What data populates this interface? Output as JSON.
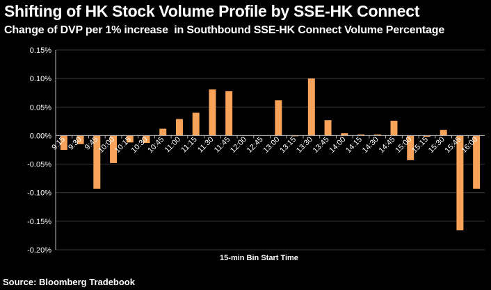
{
  "chart_data": {
    "type": "bar",
    "title": "Shifting of HK Stock Volume Profile by SSE-HK Connect",
    "subtitle": "Change of DVP per 1% increase  in Southbound SSE-HK Connect Volume Percentage",
    "xlabel": "15-min Bin Start Time",
    "ylabel": "",
    "ylim": [
      -0.2,
      0.15
    ],
    "yticks": [
      "0.15%",
      "0.10%",
      "0.05%",
      "0.00%",
      "-0.05%",
      "-0.10%",
      "-0.15%",
      "-0.20%"
    ],
    "ytick_values": [
      0.15,
      0.1,
      0.05,
      0.0,
      -0.05,
      -0.1,
      -0.15,
      -0.2
    ],
    "categories": [
      "9:15",
      "9:30",
      "9:45",
      "10:00",
      "10:15",
      "10:30",
      "10:45",
      "11:00",
      "11:15",
      "11:30",
      "11:45",
      "12:00",
      "12:45",
      "13:00",
      "13:15",
      "13:30",
      "13:45",
      "14:00",
      "14:15",
      "14:30",
      "14:45",
      "15:00",
      "15:15",
      "15:30",
      "15:45",
      "16:00"
    ],
    "values": [
      -0.025,
      -0.015,
      -0.093,
      -0.048,
      -0.012,
      -0.013,
      0.012,
      0.029,
      0.04,
      0.081,
      0.078,
      0,
      0,
      0.062,
      -0.001,
      0.1,
      0.027,
      0.004,
      0.002,
      0.002,
      0.026,
      -0.043,
      -0.002,
      0.01,
      -0.166,
      -0.093
    ],
    "grid": true,
    "legend": "none",
    "bar_color": "#F9A35A",
    "grid_color": "#3a3a3a",
    "axis_color": "#bfbfbf"
  },
  "source": "Source: Bloomberg Tradebook"
}
